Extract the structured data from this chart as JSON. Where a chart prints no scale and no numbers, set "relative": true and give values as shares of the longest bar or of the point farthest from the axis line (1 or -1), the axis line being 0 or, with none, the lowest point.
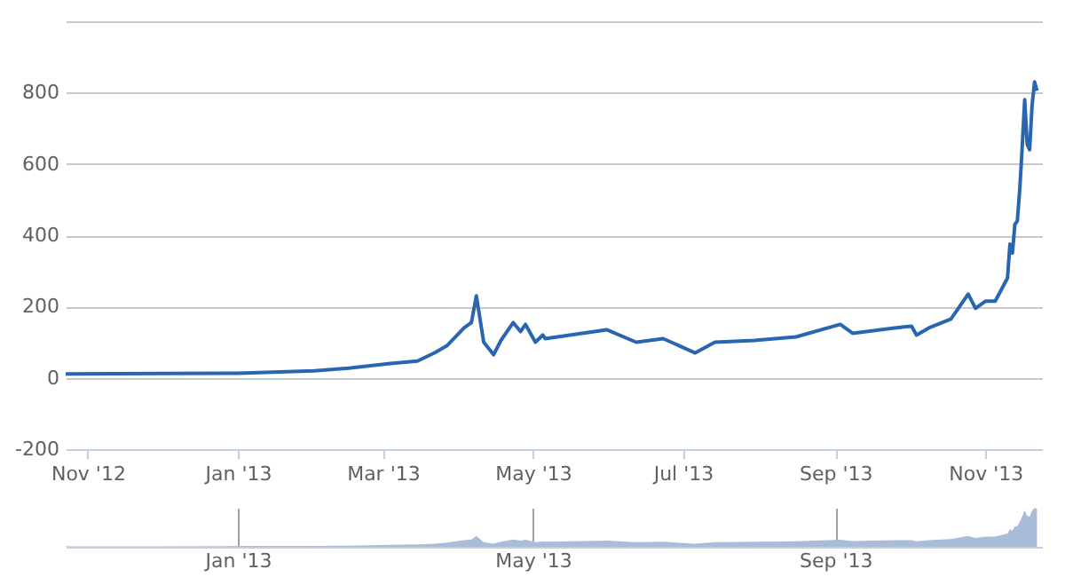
{
  "chart_data": [
    {
      "type": "line",
      "x": [
        "2012-10-23",
        "2012-12-01",
        "2013-01-01",
        "2013-02-01",
        "2013-02-15",
        "2013-03-04",
        "2013-03-15",
        "2013-03-22",
        "2013-03-27",
        "2013-04-03",
        "2013-04-06",
        "2013-04-08",
        "2013-04-11",
        "2013-04-15",
        "2013-04-18",
        "2013-04-23",
        "2013-04-26",
        "2013-04-28",
        "2013-05-02",
        "2013-05-05",
        "2013-05-06",
        "2013-05-31",
        "2013-06-12",
        "2013-06-23",
        "2013-07-06",
        "2013-07-14",
        "2013-07-30",
        "2013-08-16",
        "2013-09-03",
        "2013-09-08",
        "2013-09-25",
        "2013-10-02",
        "2013-10-04",
        "2013-10-09",
        "2013-10-18",
        "2013-10-25",
        "2013-10-28",
        "2013-11-01",
        "2013-11-05",
        "2013-11-10",
        "2013-11-11",
        "2013-11-12",
        "2013-11-13",
        "2013-11-14",
        "2013-11-15",
        "2013-11-16",
        "2013-11-17",
        "2013-11-18",
        "2013-11-19",
        "2013-11-20",
        "2013-11-21",
        "2013-11-22"
      ],
      "series": [
        {
          "color": "#2a65b0",
          "values": [
            11,
            12,
            13,
            20,
            27,
            40,
            47,
            70,
            90,
            140,
            155,
            230,
            100,
            65,
            105,
            155,
            130,
            150,
            100,
            120,
            110,
            135,
            100,
            110,
            70,
            100,
            105,
            115,
            150,
            125,
            140,
            145,
            120,
            140,
            165,
            235,
            195,
            215,
            215,
            280,
            375,
            350,
            430,
            440,
            530,
            650,
            780,
            655,
            640,
            765,
            830,
            805
          ]
        }
      ],
      "xlim": [
        "2012-10-23",
        "2013-11-24"
      ],
      "xticks": [
        {
          "value": "2012-11-01",
          "label": "Nov '12"
        },
        {
          "value": "2013-01-01",
          "label": "Jan '13"
        },
        {
          "value": "2013-03-01",
          "label": "Mar '13"
        },
        {
          "value": "2013-05-01",
          "label": "May '13"
        },
        {
          "value": "2013-07-01",
          "label": "Jul '13"
        },
        {
          "value": "2013-09-01",
          "label": "Sep '13"
        },
        {
          "value": "2013-11-01",
          "label": "Nov '13"
        }
      ],
      "ylim": [
        -200,
        1000
      ],
      "yticks": [
        -200,
        0,
        200,
        400,
        600,
        800,
        {
          "value": 1000,
          "label": null
        }
      ],
      "grid": "y",
      "line_style": "solid"
    },
    {
      "type": "area",
      "relative": true,
      "x": [
        "2012-10-23",
        "2012-12-01",
        "2013-01-01",
        "2013-02-01",
        "2013-02-15",
        "2013-03-04",
        "2013-03-15",
        "2013-03-22",
        "2013-03-27",
        "2013-04-03",
        "2013-04-06",
        "2013-04-08",
        "2013-04-11",
        "2013-04-15",
        "2013-04-18",
        "2013-04-23",
        "2013-04-26",
        "2013-04-28",
        "2013-05-02",
        "2013-05-05",
        "2013-05-06",
        "2013-05-31",
        "2013-06-12",
        "2013-06-23",
        "2013-07-06",
        "2013-07-14",
        "2013-07-30",
        "2013-08-16",
        "2013-09-03",
        "2013-09-08",
        "2013-09-25",
        "2013-10-02",
        "2013-10-04",
        "2013-10-09",
        "2013-10-18",
        "2013-10-25",
        "2013-10-28",
        "2013-11-01",
        "2013-11-05",
        "2013-11-10",
        "2013-11-11",
        "2013-11-12",
        "2013-11-13",
        "2013-11-14",
        "2013-11-15",
        "2013-11-16",
        "2013-11-17",
        "2013-11-18",
        "2013-11-19",
        "2013-11-20",
        "2013-11-21",
        "2013-11-22"
      ],
      "series": [
        {
          "color": "#a9bdd9",
          "values": [
            0.01,
            0.01,
            0.02,
            0.02,
            0.03,
            0.05,
            0.06,
            0.08,
            0.11,
            0.17,
            0.19,
            0.28,
            0.12,
            0.08,
            0.13,
            0.19,
            0.16,
            0.18,
            0.12,
            0.14,
            0.13,
            0.16,
            0.12,
            0.13,
            0.08,
            0.12,
            0.13,
            0.14,
            0.18,
            0.15,
            0.17,
            0.17,
            0.14,
            0.17,
            0.2,
            0.28,
            0.23,
            0.26,
            0.26,
            0.34,
            0.45,
            0.42,
            0.52,
            0.53,
            0.64,
            0.78,
            0.94,
            0.79,
            0.77,
            0.92,
            1,
            0.97
          ]
        }
      ],
      "xlim": [
        "2012-10-23",
        "2013-11-24"
      ],
      "xticks": [
        {
          "value": "2013-01-01",
          "label": "Jan '13"
        },
        {
          "value": "2013-05-01",
          "label": "May '13"
        },
        {
          "value": "2013-09-01",
          "label": "Sep '13"
        }
      ],
      "grid": "x",
      "tick_labels": "x"
    }
  ]
}
